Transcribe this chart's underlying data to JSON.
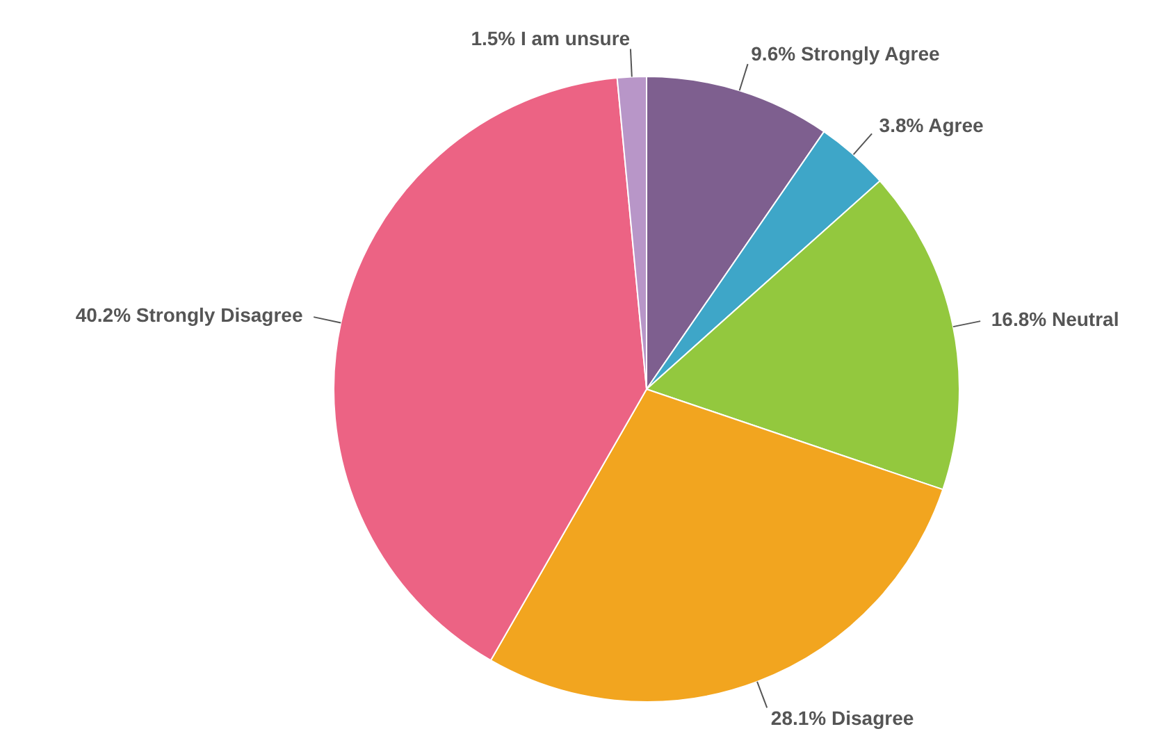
{
  "chart_data": {
    "type": "pie",
    "categories": [
      "Strongly Agree",
      "Agree",
      "Neutral",
      "Disagree",
      "Strongly Disagree",
      "I am unsure"
    ],
    "values": [
      9.6,
      3.8,
      16.8,
      28.1,
      40.2,
      1.5
    ],
    "value_labels": [
      "9.6%",
      "3.8%",
      "16.8%",
      "28.1%",
      "40.2%",
      "1.5%"
    ],
    "colors": [
      "#7e5f8f",
      "#3ea6c8",
      "#93c83e",
      "#f2a51f",
      "#ec6384",
      "#b896c8"
    ],
    "legend": false
  }
}
